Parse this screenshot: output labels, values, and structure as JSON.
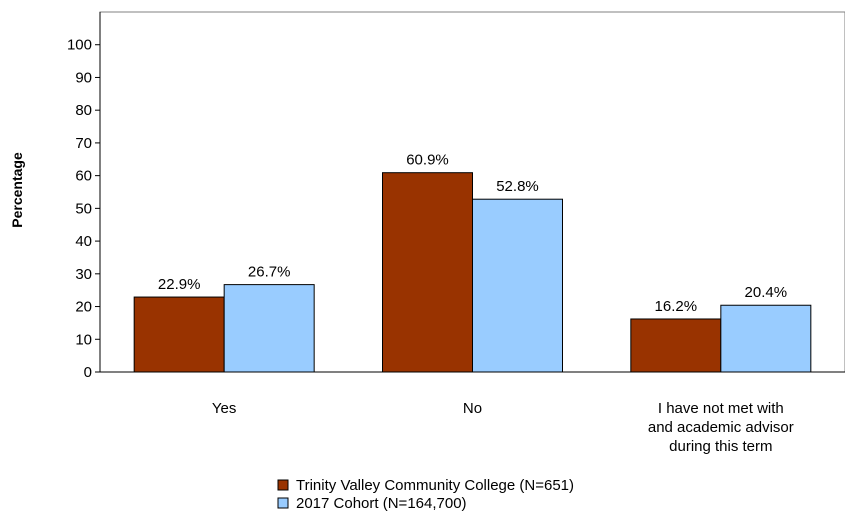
{
  "chart_data": {
    "type": "bar",
    "categories": [
      "Yes",
      "No",
      "I have not met with and academic advisor during this term"
    ],
    "category_label_lines": [
      [
        "Yes"
      ],
      [
        "No"
      ],
      [
        "I have not met with",
        "and academic advisor",
        "during this term"
      ]
    ],
    "series": [
      {
        "name": "Trinity Valley Community College (N=651)",
        "values": [
          22.9,
          60.9,
          16.2
        ],
        "labels": [
          "22.9%",
          "60.9%",
          "16.2%"
        ],
        "color": "#993300"
      },
      {
        "name": "2017 Cohort (N=164,700)",
        "values": [
          26.7,
          52.8,
          20.4
        ],
        "labels": [
          "26.7%",
          "52.8%",
          "20.4%"
        ],
        "color": "#99CCFF"
      }
    ],
    "ylabel": "Percentage",
    "xlabel": "",
    "title": "",
    "ylim": [
      0,
      100
    ],
    "yticks": [
      "0",
      "10",
      "20",
      "30",
      "40",
      "50",
      "60",
      "70",
      "80",
      "90",
      "100"
    ],
    "grid": false,
    "legend_position": "bottom"
  }
}
